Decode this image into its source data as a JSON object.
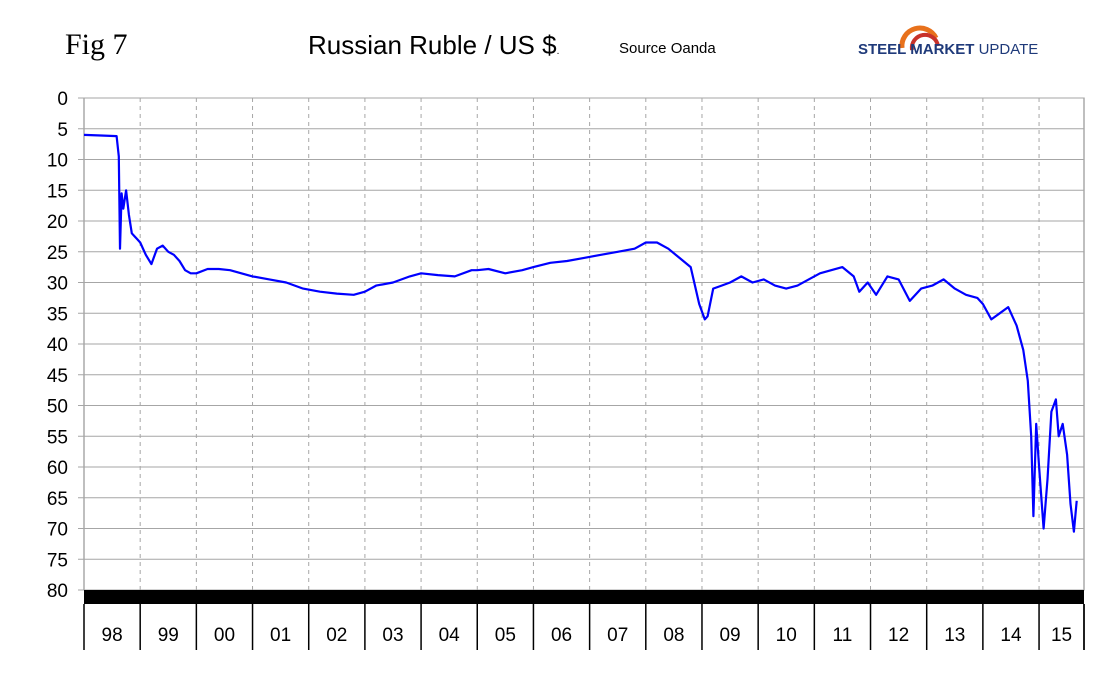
{
  "header": {
    "fig_label": "Fig 7",
    "title": "Russian Ruble / US $",
    "title_suffix": ".",
    "source": "Source Oanda",
    "logo_text_bold": "STEEL MARKET",
    "logo_text_light": " UPDATE"
  },
  "colors": {
    "line": "#0000ff",
    "logo_arc_orange": "#e8711c",
    "logo_arc_red": "#c8322a",
    "logo_text": "#1f3a7a"
  },
  "chart_data": {
    "type": "line",
    "title": "Russian Ruble / US $",
    "xlabel": "",
    "ylabel": "",
    "y_inverted": true,
    "ylim": [
      0,
      80
    ],
    "yticks": [
      0,
      5,
      10,
      15,
      20,
      25,
      30,
      35,
      40,
      45,
      50,
      55,
      60,
      65,
      70,
      75,
      80
    ],
    "xlim": [
      1998.0,
      2015.8
    ],
    "year_labels": [
      "98",
      "99",
      "00",
      "01",
      "02",
      "03",
      "04",
      "05",
      "06",
      "07",
      "08",
      "09",
      "10",
      "11",
      "12",
      "13",
      "14",
      "15"
    ],
    "grid": true,
    "series": [
      {
        "values_x": [
          1998.0,
          1998.3,
          1998.58,
          1998.62,
          1998.64,
          1998.67,
          1998.7,
          1998.75,
          1998.8,
          1998.85,
          1998.9,
          1998.95,
          1999.0,
          1999.1,
          1999.2,
          1999.3,
          1999.4,
          1999.5,
          1999.6,
          1999.7,
          1999.8,
          1999.9,
          2000.0,
          2000.2,
          2000.4,
          2000.6,
          2000.8,
          2001.0,
          2001.3,
          2001.6,
          2001.9,
          2002.2,
          2002.5,
          2002.8,
          2003.0,
          2003.2,
          2003.5,
          2003.8,
          2004.0,
          2004.3,
          2004.6,
          2004.9,
          2005.0,
          2005.2,
          2005.5,
          2005.8,
          2006.0,
          2006.3,
          2006.6,
          2006.9,
          2007.2,
          2007.5,
          2007.8,
          2008.0,
          2008.2,
          2008.4,
          2008.6,
          2008.8,
          2008.95,
          2009.05,
          2009.1,
          2009.2,
          2009.35,
          2009.5,
          2009.7,
          2009.9,
          2010.1,
          2010.3,
          2010.5,
          2010.7,
          2010.9,
          2011.1,
          2011.3,
          2011.5,
          2011.7,
          2011.8,
          2011.95,
          2012.1,
          2012.3,
          2012.5,
          2012.7,
          2012.9,
          2013.1,
          2013.3,
          2013.5,
          2013.7,
          2013.9,
          2014.0,
          2014.15,
          2014.3,
          2014.45,
          2014.6,
          2014.72,
          2014.8,
          2014.86,
          2014.9,
          2014.95,
          2015.0,
          2015.08,
          2015.15,
          2015.22,
          2015.3,
          2015.35,
          2015.42,
          2015.5,
          2015.56,
          2015.62,
          2015.67
        ],
        "values_y": [
          6.0,
          6.1,
          6.2,
          9.5,
          24.5,
          15.5,
          18.0,
          15.0,
          19.0,
          22.0,
          22.5,
          23.0,
          23.5,
          25.5,
          27.0,
          24.5,
          24.0,
          25.0,
          25.5,
          26.5,
          28.0,
          28.5,
          28.5,
          27.8,
          27.8,
          28.0,
          28.5,
          29.0,
          29.5,
          30.0,
          31.0,
          31.5,
          31.8,
          32.0,
          31.5,
          30.5,
          30.0,
          29.0,
          28.5,
          28.8,
          29.0,
          28.0,
          28.0,
          27.8,
          28.5,
          28.0,
          27.5,
          26.8,
          26.5,
          26.0,
          25.5,
          25.0,
          24.5,
          23.5,
          23.5,
          24.5,
          26.0,
          27.5,
          33.5,
          36.0,
          35.5,
          31.0,
          30.5,
          30.0,
          29.0,
          30.0,
          29.5,
          30.5,
          31.0,
          30.5,
          29.5,
          28.5,
          28.0,
          27.5,
          29.0,
          31.5,
          30.0,
          32.0,
          29.0,
          29.5,
          33.0,
          31.0,
          30.5,
          29.5,
          31.0,
          32.0,
          32.5,
          33.5,
          36.0,
          35.0,
          34.0,
          37.0,
          41.0,
          46.0,
          55.0,
          68.0,
          53.0,
          60.0,
          70.0,
          62.0,
          51.0,
          49.0,
          55.0,
          53.0,
          58.0,
          66.0,
          70.5,
          65.5
        ]
      }
    ]
  }
}
